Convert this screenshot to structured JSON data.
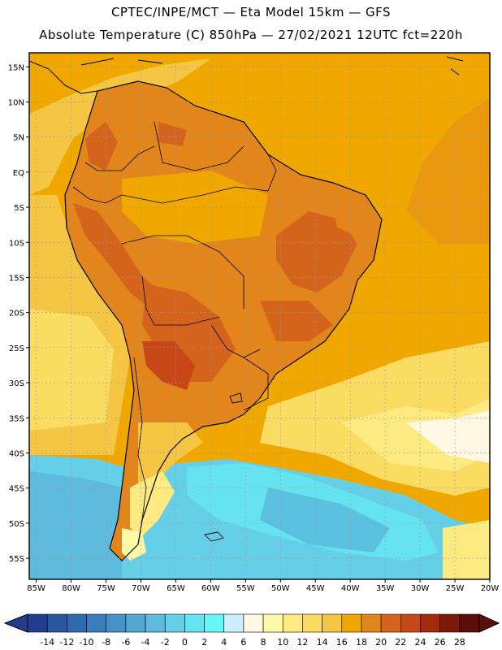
{
  "header": {
    "line1": "CPTEC/INPE/MCT —  Eta Model 15km — GFS",
    "line2": "Absolute Temperature (C) 850hPa — 27/02/2021 12UTC fct=220h"
  },
  "map": {
    "lon_labels": [
      "85W",
      "80W",
      "75W",
      "70W",
      "65W",
      "60W",
      "55W",
      "50W",
      "45W",
      "40W",
      "35W",
      "30W",
      "25W",
      "20W"
    ],
    "lon_values": [
      -85,
      -80,
      -75,
      -70,
      -65,
      -60,
      -55,
      -50,
      -45,
      -40,
      -35,
      -30,
      -25,
      -20
    ],
    "lat_labels": [
      "15N",
      "10N",
      "5N",
      "EQ",
      "5S",
      "10S",
      "15S",
      "20S",
      "25S",
      "30S",
      "35S",
      "40S",
      "45S",
      "50S",
      "55S"
    ],
    "lat_values": [
      15,
      10,
      5,
      0,
      -5,
      -10,
      -15,
      -20,
      -25,
      -30,
      -35,
      -40,
      -45,
      -50,
      -55
    ],
    "extent": {
      "lon_min": -86,
      "lon_max": -20,
      "lat_min": -58,
      "lat_max": 17
    }
  },
  "colorbar": {
    "labels": [
      "-14",
      "-12",
      "-10",
      "-8",
      "-6",
      "-4",
      "-2",
      "0",
      "2",
      "4",
      "6",
      "8",
      "10",
      "12",
      "14",
      "16",
      "18",
      "20",
      "22",
      "24",
      "26",
      "28"
    ],
    "colors": [
      "#233d8e",
      "#2a55a1",
      "#3169b0",
      "#3a7dbd",
      "#4592c8",
      "#52a6d2",
      "#5ebbdd",
      "#66cfe8",
      "#66e3f0",
      "#66f6f6",
      "#cfeefc",
      "#fff8e3",
      "#fdf8a8",
      "#fdeb82",
      "#fbdc63",
      "#f5c643",
      "#f0a800",
      "#e2861c",
      "#d4641b",
      "#c74716",
      "#a22b0e",
      "#7c190b",
      "#5c0d09"
    ]
  },
  "chart_data": {
    "type": "heatmap",
    "title": "Absolute Temperature (C) 850hPa",
    "units": "C",
    "scale_range": [
      -14,
      28
    ],
    "summary": {
      "tropics_and_ocean_north_of_30S": "16 to 20",
      "central_brazil_andes_foothills": "20 to 24",
      "southern_ocean_near_50S": "0 to 4",
      "patagonia": "6 to 14"
    }
  }
}
